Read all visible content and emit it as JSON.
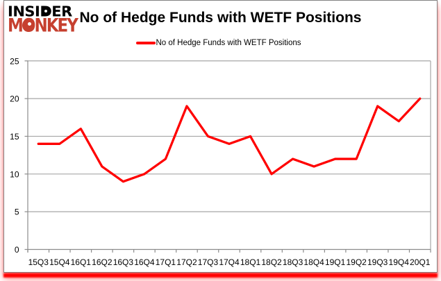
{
  "branding": {
    "logo_line1": "INSIDER",
    "logo_line2": "MONKEY",
    "logo_color_line1": "#000000",
    "logo_color_line2": "#c6402f"
  },
  "chart_data": {
    "type": "line",
    "title": "No of Hedge Funds with WETF Positions",
    "legend_label": "No of Hedge Funds with WETF Positions",
    "legend_position": "top",
    "grid": true,
    "categories": [
      "15Q3",
      "15Q4",
      "16Q1",
      "16Q2",
      "16Q3",
      "16Q4",
      "17Q1",
      "17Q2",
      "17Q3",
      "17Q4",
      "18Q1",
      "18Q2",
      "18Q3",
      "18Q4",
      "19Q1",
      "19Q2",
      "19Q3",
      "19Q4",
      "20Q1"
    ],
    "series": [
      {
        "name": "No of Hedge Funds with WETF Positions",
        "color": "#ff0000",
        "values": [
          14,
          14,
          16,
          11,
          9,
          10,
          12,
          19,
          15,
          14,
          15,
          10,
          12,
          11,
          12,
          12,
          19,
          17,
          20
        ]
      }
    ],
    "ylim": [
      0,
      25
    ],
    "y_ticks": [
      0,
      5,
      10,
      15,
      20,
      25
    ],
    "xlabel": "",
    "ylabel": ""
  },
  "colors": {
    "gridline": "#a6a6a6",
    "axis": "#8c8c8c",
    "tick_label": "#000000",
    "card_border": "#8c8c8c",
    "bottom_bar": "#ff0000",
    "background": "#ffffff"
  }
}
